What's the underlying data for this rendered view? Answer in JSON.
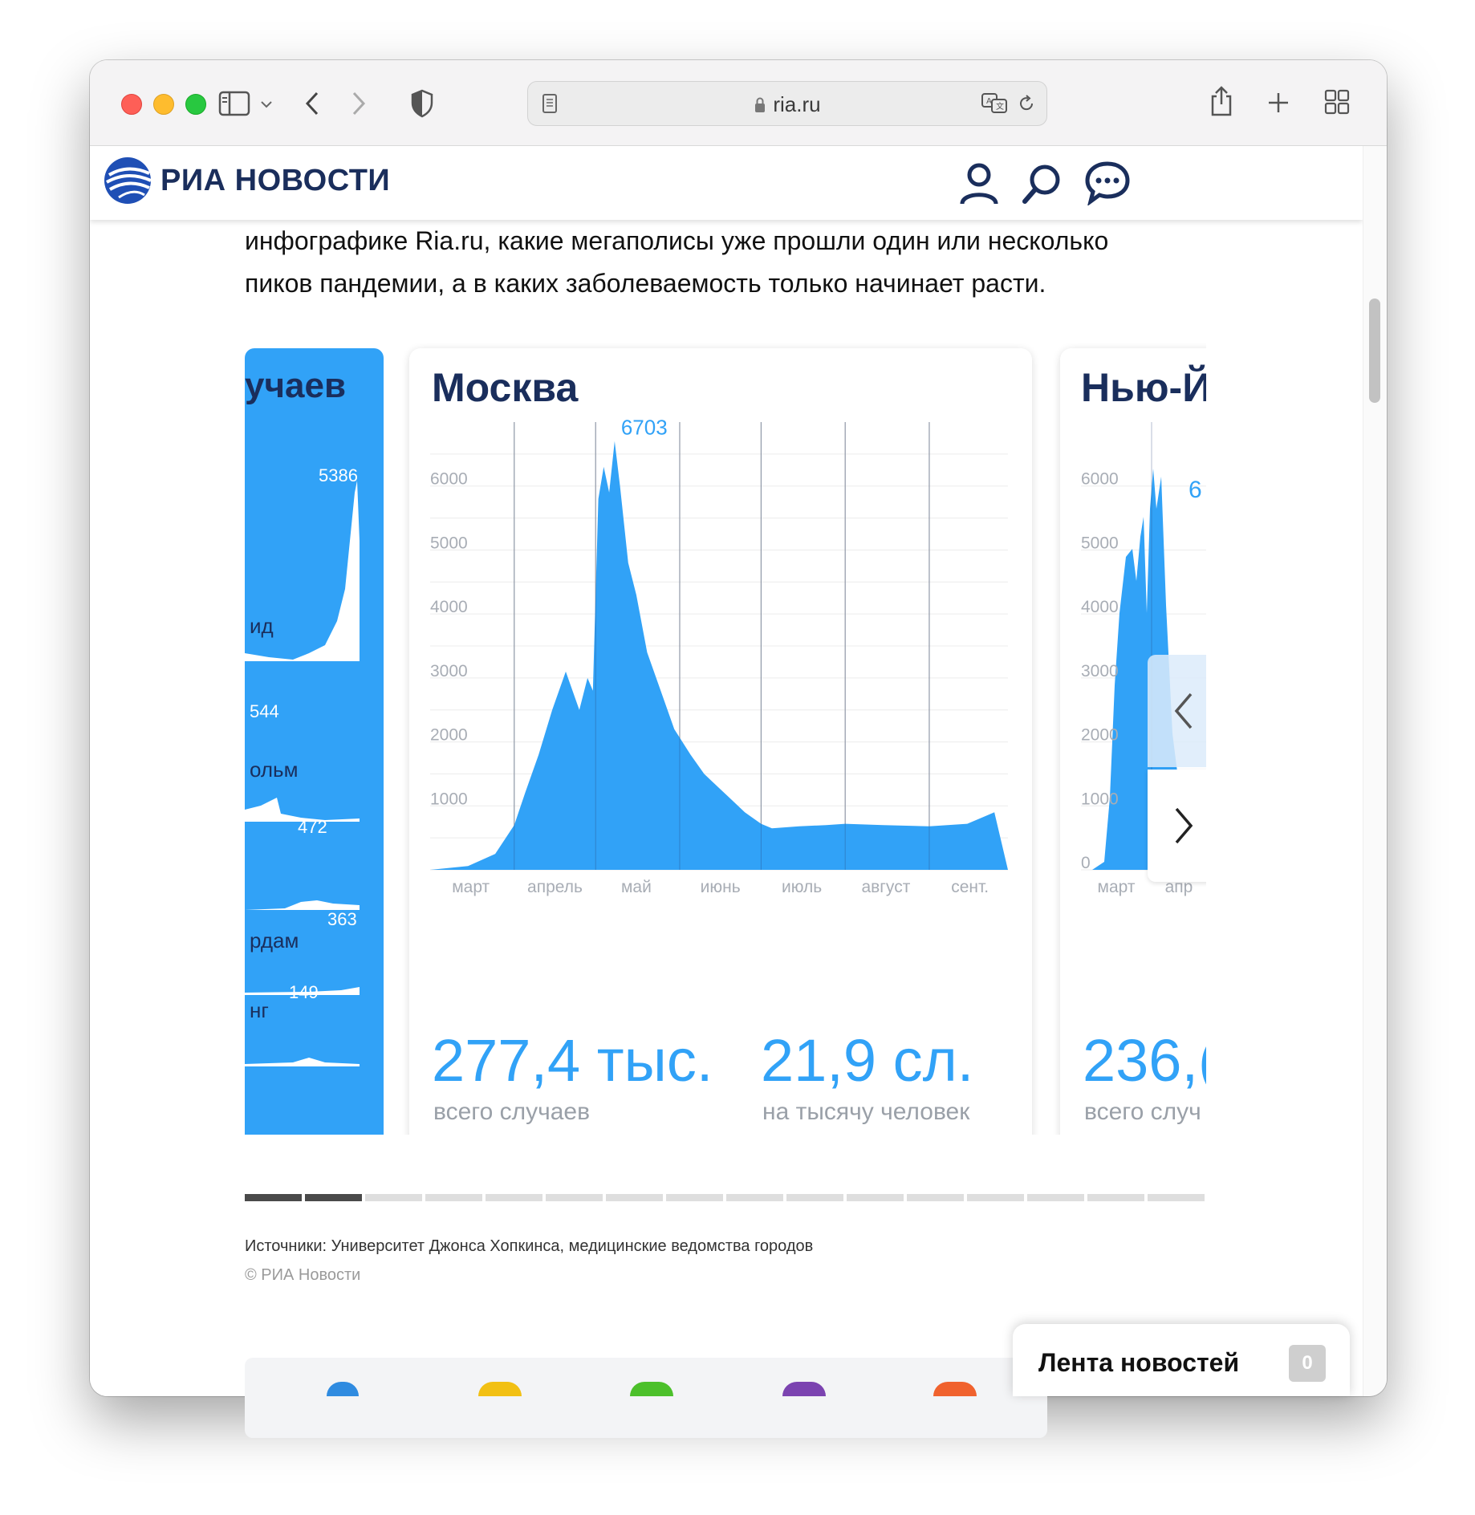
{
  "browser": {
    "url": "ria.ru"
  },
  "site": {
    "logo": "РИА НОВОСТИ"
  },
  "article": {
    "line1": "инфографике Ria.ru, какие мегаполисы уже прошли один или несколько",
    "line2": "пиков пандемии, а в каких заболеваемость только начинает расти."
  },
  "left_card": {
    "title_fragment": "учаев",
    "rows": [
      {
        "value": "5386",
        "label": "ид"
      },
      {
        "value": "544",
        "label": "ольм"
      },
      {
        "value": "472",
        "label": ""
      },
      {
        "value": "363",
        "label": "рдам"
      },
      {
        "value": "149",
        "label": "нг"
      }
    ]
  },
  "main_card": {
    "title": "Москва",
    "total_value": "277,4 тыс.",
    "total_label": "всего случаев",
    "per_thousand_value": "21,9 сл.",
    "per_thousand_label": "на тысячу человек"
  },
  "right_card": {
    "title_fragment": "Нью-Й",
    "total_fragment": "236,(",
    "total_label_fragment": "всего случ",
    "peak_fragment": "6",
    "x_fragments": [
      "март",
      "апр"
    ]
  },
  "chart_data": {
    "type": "area",
    "title": "Москва",
    "peak_label": "6703",
    "yticks": [
      0,
      1000,
      2000,
      3000,
      4000,
      5000,
      6000
    ],
    "xticks": [
      "март",
      "апрель",
      "май",
      "июнь",
      "июль",
      "август",
      "сент."
    ],
    "ylim": [
      0,
      7000
    ],
    "x": [
      "03-01",
      "03-15",
      "03-25",
      "04-01",
      "04-05",
      "04-10",
      "04-15",
      "04-20",
      "04-25",
      "04-28",
      "04-30",
      "05-02",
      "05-04",
      "05-06",
      "05-08",
      "05-10",
      "05-13",
      "05-16",
      "05-20",
      "05-25",
      "05-30",
      "06-05",
      "06-10",
      "06-15",
      "06-20",
      "06-25",
      "07-01",
      "07-05",
      "07-15",
      "07-25",
      "08-01",
      "08-15",
      "09-01",
      "09-15",
      "09-25"
    ],
    "values": [
      0,
      60,
      250,
      700,
      1200,
      1800,
      2500,
      3100,
      2500,
      3000,
      2800,
      5800,
      6300,
      5900,
      6703,
      6000,
      4800,
      4300,
      3400,
      2800,
      2200,
      1800,
      1500,
      1300,
      1100,
      900,
      720,
      650,
      680,
      700,
      720,
      700,
      680,
      720,
      900
    ],
    "color": "#31a2f7",
    "grid": true
  },
  "source": "Источники: Университет Джонса Хопкинса, медицинские ведомства городов",
  "copyright": "© РИА Новости",
  "news_feed": {
    "label": "Лента новостей",
    "count": "0"
  }
}
